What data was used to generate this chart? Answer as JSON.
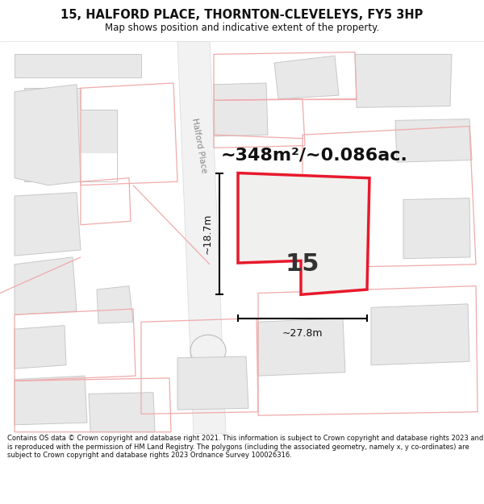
{
  "title": "15, HALFORD PLACE, THORNTON-CLEVELEYS, FY5 3HP",
  "subtitle": "Map shows position and indicative extent of the property.",
  "area_label": "~348m²/~0.086ac.",
  "plot_number": "15",
  "dim_width": "~27.8m",
  "dim_height": "~18.7m",
  "street_label": "Halford Place",
  "footer": "Contains OS data © Crown copyright and database right 2021. This information is subject to Crown copyright and database rights 2023 and is reproduced with the permission of HM Land Registry. The polygons (including the associated geometry, namely x, y co-ordinates) are subject to Crown copyright and database rights 2023 Ordnance Survey 100026316.",
  "bg_color": "#ffffff",
  "map_bg": "#ffffff",
  "building_fill": "#e8e8e8",
  "building_edge": "#c8c8c8",
  "red_outline": "#e8192c",
  "pink_outline": "#f0aaaa",
  "title_color": "#111111",
  "footer_color": "#111111",
  "title_fontsize": 10.5,
  "subtitle_fontsize": 8.5,
  "area_fontsize": 16,
  "plot_fontsize": 22,
  "dim_fontsize": 9,
  "footer_fontsize": 6.0
}
